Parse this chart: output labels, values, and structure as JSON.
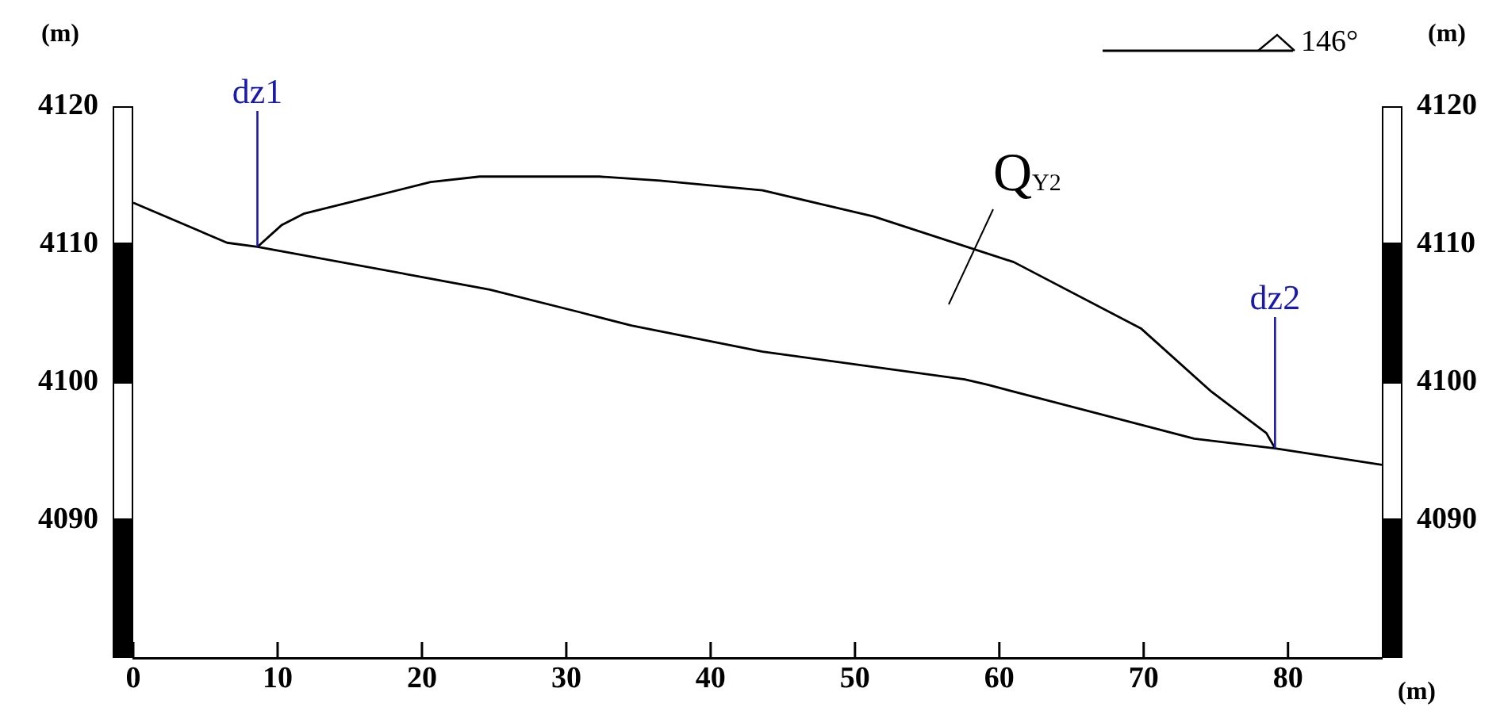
{
  "chart_data": {
    "type": "line",
    "xlabel": "(m)",
    "ylabel": "(m)",
    "y2label": "(m)",
    "xlim": [
      0,
      86.5
    ],
    "xticks": [
      0,
      10,
      20,
      30,
      40,
      50,
      60,
      70,
      80
    ],
    "ylim": [
      4080,
      4120
    ],
    "yticks": [
      4090,
      4100,
      4110,
      4120
    ],
    "y2lim": [
      4080,
      4120
    ],
    "y2ticks": [
      4090,
      4100,
      4110,
      4120
    ],
    "grid": false,
    "legend": false,
    "marker": "none",
    "line_style": "solid",
    "series": [
      {
        "color": "#000000",
        "x": [
          0,
          6.5,
          8.6,
          20.1,
          24.7,
          30.8,
          34.5,
          43.6,
          57.6,
          59.2,
          73.5,
          79.1,
          86.5
        ],
        "values": [
          4113.0,
          4110.1,
          4109.8,
          4107.6,
          4106.7,
          4105.1,
          4104.1,
          4102.2,
          4100.2,
          4099.8,
          4095.9,
          4095.2,
          4094.0
        ]
      },
      {
        "color": "#000000",
        "x": [
          8.6,
          10.3,
          11.8,
          20.6,
          24.0,
          32.3,
          36.5,
          43.6,
          51.3,
          61.0,
          69.8,
          74.7,
          78.5,
          79.1
        ],
        "values": [
          4109.8,
          4111.4,
          4112.2,
          4114.5,
          4114.9,
          4114.9,
          4114.6,
          4113.9,
          4112.0,
          4108.7,
          4103.9,
          4099.3,
          4096.3,
          4095.2
        ]
      }
    ],
    "annotations": [
      {
        "text": "dz1",
        "x": 8.6,
        "y": 4109.8
      },
      {
        "text": "dz2",
        "x": 79.1,
        "y": 4095.2
      },
      "Q$_{Y2}$",
      "146°"
    ]
  }
}
